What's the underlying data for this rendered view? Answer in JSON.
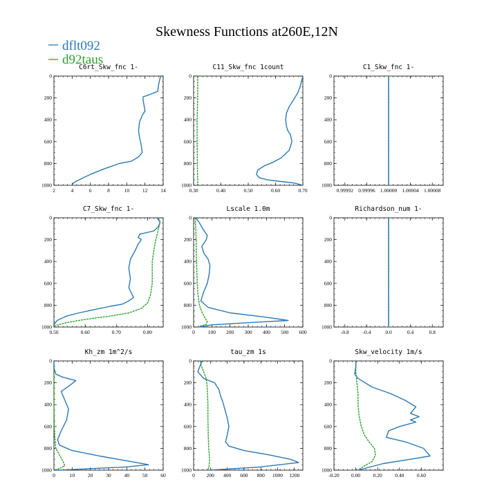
{
  "figure": {
    "title": "Skewness Functions at260E,12N",
    "legend": [
      {
        "name": "dflt092",
        "color": "#2a77b4"
      },
      {
        "name": "d92taus",
        "color": "#2ca02c"
      }
    ],
    "legend_placement": "top-left"
  },
  "chart_data": [
    {
      "type": "line",
      "title": "C6rt_Skw_fnc  1-",
      "xlim": [
        2,
        14
      ],
      "ylim": [
        0,
        1000
      ],
      "y_inverted": true,
      "xticks": [
        "2",
        "4",
        "6",
        "8",
        "10",
        "12",
        "14"
      ],
      "yticks": [
        "0",
        "200",
        "400",
        "600",
        "800",
        "1000"
      ],
      "series": [
        {
          "name": "dflt092",
          "color": "#2a77b4",
          "x": [
            13.7,
            13.7,
            13.6,
            13.5,
            13.4,
            12.5,
            11.8,
            11.8,
            12.0,
            11.7,
            11.4,
            11.3,
            11.4,
            11.6,
            11.7,
            11.3,
            10.5,
            9.2,
            7.5,
            6.0,
            4.5,
            4.0
          ],
          "y": [
            0,
            10,
            40,
            80,
            140,
            170,
            190,
            220,
            320,
            360,
            420,
            500,
            560,
            640,
            700,
            740,
            780,
            800,
            850,
            900,
            960,
            990
          ]
        },
        {
          "name": "d92taus",
          "color": "#2ca02c",
          "x": [
            13.6,
            13.6
          ],
          "y": [
            0,
            5
          ]
        }
      ]
    },
    {
      "type": "line",
      "title": "C11_Skw_fnc  1count",
      "xlim": [
        0.3,
        0.7
      ],
      "ylim": [
        0,
        1000
      ],
      "y_inverted": true,
      "xticks": [
        "0.30",
        "0.40",
        "0.50",
        "0.60",
        "0.70"
      ],
      "yticks": [
        "0",
        "200",
        "400",
        "600",
        "800",
        "1000"
      ],
      "series": [
        {
          "name": "dflt092",
          "color": "#2a77b4",
          "x": [
            0.7,
            0.695,
            0.69,
            0.68,
            0.665,
            0.65,
            0.64,
            0.637,
            0.64,
            0.645,
            0.655,
            0.66,
            0.65,
            0.62,
            0.59,
            0.56,
            0.535,
            0.53,
            0.54,
            0.57,
            0.62,
            0.67,
            0.7
          ],
          "y": [
            0,
            50,
            100,
            160,
            220,
            280,
            340,
            400,
            460,
            500,
            540,
            600,
            680,
            750,
            790,
            820,
            860,
            900,
            930,
            950,
            965,
            980,
            1000
          ]
        },
        {
          "name": "d92taus",
          "color": "#2ca02c",
          "x": [
            0.315,
            0.315,
            0.313,
            0.313,
            0.314,
            0.315
          ],
          "y": [
            0,
            200,
            400,
            600,
            800,
            1000
          ]
        }
      ]
    },
    {
      "type": "line",
      "title": "C1_Skw_fnc  1-",
      "xlim": [
        0.9999,
        1.0001
      ],
      "ylim": [
        0,
        1000
      ],
      "y_inverted": true,
      "xticks": [
        "0.99992",
        "0.99996",
        "1.00000",
        "1.00004",
        "1.00008"
      ],
      "yticks": [
        "0",
        "200",
        "400",
        "600",
        "800",
        "1000"
      ],
      "series": [
        {
          "name": "dflt092",
          "color": "#2a77b4",
          "x": [
            1.0,
            1.0
          ],
          "y": [
            0,
            1000
          ]
        },
        {
          "name": "d92taus",
          "color": "#2ca02c",
          "x": [
            1.0,
            1.0
          ],
          "y": [
            0,
            1000
          ]
        }
      ]
    },
    {
      "type": "line",
      "title": "C7_Skw_fnc  1-",
      "xlim": [
        0.5,
        0.85
      ],
      "ylim": [
        0,
        1000
      ],
      "y_inverted": true,
      "xticks": [
        "0.50",
        "0.60",
        "0.70",
        "0.80"
      ],
      "yticks": [
        "0",
        "200",
        "400",
        "600",
        "800",
        "1000"
      ],
      "series": [
        {
          "name": "dflt092",
          "color": "#2a77b4",
          "x": [
            0.83,
            0.84,
            0.835,
            0.82,
            0.775,
            0.77,
            0.78,
            0.77,
            0.76,
            0.745,
            0.74,
            0.745,
            0.74,
            0.75,
            0.755,
            0.74,
            0.72,
            0.68,
            0.63,
            0.58,
            0.54,
            0.51,
            0.5
          ],
          "y": [
            0,
            40,
            80,
            120,
            150,
            180,
            200,
            240,
            300,
            380,
            460,
            560,
            640,
            700,
            730,
            760,
            790,
            810,
            840,
            870,
            900,
            940,
            980
          ]
        },
        {
          "name": "d92taus",
          "color": "#2ca02c",
          "x": [
            0.835,
            0.84,
            0.835,
            0.83,
            0.825,
            0.82,
            0.815,
            0.815,
            0.815,
            0.81,
            0.8,
            0.78,
            0.74,
            0.68,
            0.6,
            0.54,
            0.5
          ],
          "y": [
            0,
            40,
            100,
            160,
            220,
            300,
            400,
            500,
            600,
            700,
            780,
            830,
            870,
            900,
            930,
            960,
            990
          ]
        }
      ]
    },
    {
      "type": "line",
      "title": "Lscale  1.0m",
      "xlim": [
        0,
        600
      ],
      "ylim": [
        0,
        1000
      ],
      "y_inverted": true,
      "xticks": [
        "0",
        "100",
        "200",
        "300",
        "400",
        "500",
        "600"
      ],
      "yticks": [
        "0",
        "200",
        "400",
        "600",
        "800",
        "1000"
      ],
      "series": [
        {
          "name": "dflt092",
          "color": "#2a77b4",
          "x": [
            10,
            30,
            50,
            75,
            70,
            45,
            55,
            80,
            90,
            85,
            75,
            55,
            40,
            80,
            200,
            400,
            520,
            300,
            100,
            30
          ],
          "y": [
            0,
            40,
            100,
            160,
            200,
            260,
            320,
            380,
            440,
            520,
            600,
            680,
            760,
            820,
            870,
            910,
            940,
            960,
            980,
            1000
          ]
        },
        {
          "name": "d92taus",
          "color": "#2ca02c",
          "x": [
            8,
            12,
            14,
            15,
            16,
            18,
            20,
            24,
            32,
            45,
            60,
            75,
            70,
            40,
            20
          ],
          "y": [
            0,
            100,
            200,
            300,
            400,
            500,
            600,
            700,
            800,
            860,
            910,
            950,
            975,
            990,
            1000
          ]
        }
      ]
    },
    {
      "type": "line",
      "title": "Richardson_num  1-",
      "xlim": [
        -1.0,
        1.0
      ],
      "ylim": [
        0,
        1000
      ],
      "y_inverted": true,
      "xticks": [
        "-0.8",
        "-0.4",
        "0.0",
        "0.4",
        "0.8"
      ],
      "yticks": [
        "0",
        "200",
        "400",
        "600",
        "800",
        "1000"
      ],
      "series": [
        {
          "name": "dflt092",
          "color": "#2a77b4",
          "x": [
            0.0,
            0.0
          ],
          "y": [
            0,
            1000
          ]
        },
        {
          "name": "d92taus",
          "color": "#2ca02c",
          "x": [
            0.0,
            0.0
          ],
          "y": [
            0,
            1000
          ]
        }
      ]
    },
    {
      "type": "line",
      "title": "Kh_zm  1m^2/s",
      "xlim": [
        0,
        60
      ],
      "ylim": [
        0,
        1000
      ],
      "y_inverted": true,
      "xticks": [
        "0",
        "10",
        "20",
        "30",
        "40",
        "50",
        "60"
      ],
      "yticks": [
        "0",
        "200",
        "400",
        "600",
        "800",
        "1000"
      ],
      "series": [
        {
          "name": "dflt092",
          "color": "#2a77b4",
          "x": [
            0,
            0,
            1,
            5,
            12,
            9,
            4,
            6,
            8,
            7,
            4,
            2,
            3,
            10,
            25,
            42,
            52,
            40,
            15,
            2
          ],
          "y": [
            0,
            60,
            120,
            150,
            180,
            220,
            280,
            360,
            440,
            540,
            640,
            720,
            770,
            820,
            870,
            920,
            950,
            970,
            990,
            1000
          ]
        },
        {
          "name": "d92taus",
          "color": "#2ca02c",
          "x": [
            0,
            0,
            0,
            0.2,
            0.5,
            1,
            3,
            5,
            6,
            3,
            0
          ],
          "y": [
            0,
            200,
            400,
            600,
            700,
            800,
            860,
            920,
            960,
            985,
            1000
          ]
        }
      ]
    },
    {
      "type": "line",
      "title": "tau_zm  1s",
      "xlim": [
        0,
        1300
      ],
      "ylim": [
        0,
        1000
      ],
      "y_inverted": true,
      "xticks": [
        "0",
        "200",
        "400",
        "600",
        "800",
        "1000",
        "1200"
      ],
      "yticks": [
        "0",
        "200",
        "400",
        "600",
        "800",
        "1000"
      ],
      "series": [
        {
          "name": "dflt092",
          "color": "#2a77b4",
          "x": [
            100,
            80,
            50,
            120,
            250,
            300,
            320,
            350,
            370,
            400,
            420,
            400,
            380,
            420,
            600,
            900,
            1150,
            1250,
            800,
            200
          ],
          "y": [
            0,
            40,
            100,
            160,
            200,
            260,
            320,
            380,
            440,
            520,
            600,
            680,
            740,
            780,
            820,
            860,
            900,
            930,
            970,
            1000
          ]
        },
        {
          "name": "d92taus",
          "color": "#2ca02c",
          "x": [
            80,
            90,
            120,
            150,
            160,
            165,
            170,
            170,
            172,
            175,
            180,
            190,
            185,
            170
          ],
          "y": [
            0,
            40,
            100,
            160,
            220,
            300,
            400,
            500,
            600,
            700,
            800,
            900,
            960,
            1000
          ]
        }
      ]
    },
    {
      "type": "line",
      "title": "Skw_velocity  1m/s",
      "xlim": [
        -0.2,
        0.8
      ],
      "ylim": [
        0,
        1000
      ],
      "y_inverted": true,
      "xticks": [
        "-0.20",
        "0.00",
        "0.20",
        "0.40",
        "0.60"
      ],
      "yticks": [
        "0",
        "200",
        "400",
        "600",
        "800",
        "1000"
      ],
      "series": [
        {
          "name": "dflt092",
          "color": "#2a77b4",
          "x": [
            0.0,
            0.0,
            -0.01,
            0.02,
            0.15,
            0.32,
            0.45,
            0.55,
            0.5,
            0.58,
            0.5,
            0.55,
            0.4,
            0.3,
            0.28,
            0.45,
            0.62,
            0.68,
            0.5,
            0.25,
            0.02
          ],
          "y": [
            0,
            50,
            120,
            160,
            240,
            300,
            360,
            420,
            480,
            510,
            540,
            560,
            600,
            640,
            700,
            740,
            800,
            870,
            900,
            940,
            1000
          ]
        },
        {
          "name": "d92taus",
          "color": "#2ca02c",
          "x": [
            0.0,
            0.0,
            0.01,
            0.02,
            0.02,
            0.03,
            0.05,
            0.08,
            0.12,
            0.17,
            0.18,
            0.15,
            0.08,
            0.02
          ],
          "y": [
            0,
            100,
            200,
            300,
            400,
            500,
            600,
            680,
            740,
            800,
            860,
            920,
            960,
            1000
          ]
        }
      ]
    }
  ]
}
